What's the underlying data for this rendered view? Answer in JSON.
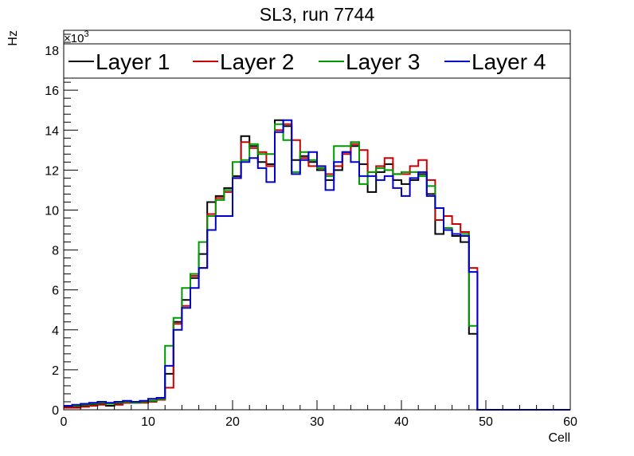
{
  "chart_data": {
    "type": "line",
    "title": "SL3, run 7744",
    "xlabel": "Cell",
    "ylabel": "Hz",
    "y_exponent_label": "×10",
    "y_exponent_power": "3",
    "xlim": [
      0,
      60
    ],
    "ylim": [
      0,
      19000
    ],
    "x_ticks": [
      "0",
      "10",
      "20",
      "30",
      "40",
      "50",
      "60"
    ],
    "y_ticks": [
      "0",
      "2",
      "4",
      "6",
      "8",
      "10",
      "12",
      "14",
      "16",
      "18"
    ],
    "legend_position": "top",
    "bin_width": 1,
    "series": [
      {
        "name": "Layer 1",
        "color": "#000000",
        "values": [
          150,
          150,
          200,
          250,
          300,
          200,
          300,
          350,
          350,
          400,
          450,
          500,
          1800,
          4400,
          5500,
          6600,
          7800,
          10400,
          10700,
          11100,
          11700,
          13700,
          13200,
          12400,
          12300,
          14500,
          14200,
          12500,
          12700,
          12400,
          12000,
          11500,
          12000,
          12900,
          13200,
          12300,
          10900,
          11900,
          12300,
          11500,
          11300,
          11500,
          11800,
          10800,
          8800,
          9000,
          8700,
          8400,
          3800,
          0,
          0,
          0,
          0,
          0,
          0,
          0,
          0,
          0,
          0,
          0
        ]
      },
      {
        "name": "Layer 2",
        "color": "#cc0000",
        "values": [
          100,
          100,
          150,
          200,
          250,
          300,
          250,
          350,
          350,
          350,
          400,
          500,
          1100,
          4300,
          5200,
          6700,
          7100,
          9800,
          10600,
          10900,
          11600,
          13400,
          13100,
          12900,
          12200,
          14000,
          14300,
          13500,
          12600,
          12200,
          12100,
          11800,
          12200,
          12800,
          13300,
          13000,
          11900,
          12200,
          12600,
          11800,
          11800,
          12200,
          12500,
          11500,
          9500,
          9700,
          9300,
          8900,
          7100,
          0,
          0,
          0,
          0,
          0,
          0,
          0,
          0,
          0,
          0,
          0
        ]
      },
      {
        "name": "Layer 3",
        "color": "#009900",
        "values": [
          200,
          200,
          250,
          300,
          350,
          300,
          350,
          400,
          350,
          400,
          450,
          550,
          3200,
          4600,
          6100,
          6800,
          8400,
          9700,
          10500,
          11000,
          12400,
          12500,
          13300,
          12800,
          12800,
          14300,
          13500,
          11900,
          12900,
          12500,
          12100,
          11700,
          13200,
          13200,
          13400,
          11300,
          11900,
          12100,
          12000,
          11800,
          11900,
          11900,
          11700,
          11200,
          10100,
          9100,
          8800,
          8800,
          4200,
          0,
          0,
          0,
          0,
          0,
          0,
          0,
          0,
          0,
          0,
          0
        ]
      },
      {
        "name": "Layer 4",
        "color": "#0000cc",
        "values": [
          200,
          250,
          300,
          350,
          400,
          350,
          400,
          450,
          400,
          450,
          550,
          600,
          2200,
          4000,
          5100,
          6100,
          7100,
          9000,
          9700,
          9700,
          11600,
          12400,
          12600,
          12100,
          11400,
          13900,
          14500,
          11800,
          12500,
          12900,
          12200,
          11000,
          12400,
          12900,
          12400,
          11700,
          11700,
          11500,
          11700,
          11100,
          10700,
          11600,
          11900,
          10700,
          10100,
          9000,
          8800,
          8700,
          6900,
          0,
          0,
          0,
          0,
          0,
          0,
          0,
          0,
          0,
          0,
          0
        ]
      }
    ]
  }
}
